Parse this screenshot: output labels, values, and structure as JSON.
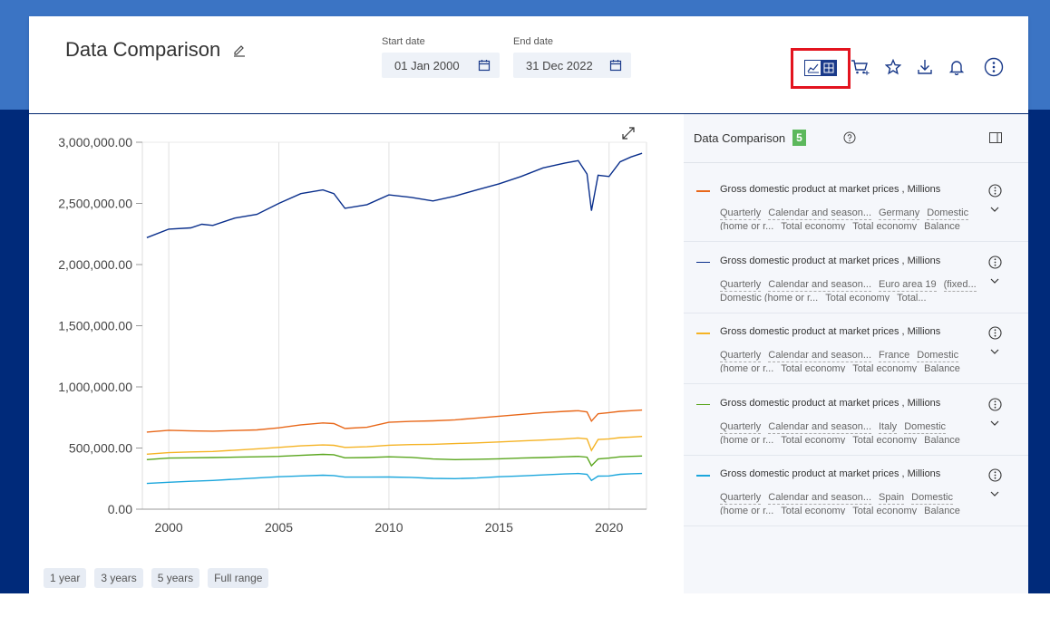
{
  "header": {
    "title": "Data Comparison",
    "start_label": "Start date",
    "start_value": "01 Jan 2000",
    "end_label": "End date",
    "end_value": "31 Dec 2022",
    "toolbar_icons": [
      "chart-table-toggle-icon",
      "cart-add-icon",
      "star-icon",
      "download-icon",
      "bell-icon",
      "more-vertical-icon"
    ]
  },
  "panel": {
    "title": "Data Comparison",
    "count": "5",
    "items": [
      {
        "name": "Gross domestic product at market prices , Millions",
        "color": "#e8681a",
        "tags": [
          "Quarterly",
          "Calendar and season...",
          "Germany",
          "Domestic",
          "(home or r...",
          "Total economy",
          "Total economy",
          "Balance"
        ]
      },
      {
        "name": "Gross domestic product at market prices , Millions",
        "color": "#0a2f8c",
        "tags": [
          "Quarterly",
          "Calendar and season...",
          "Euro area 19",
          "(fixed...",
          "Domestic (home or r...",
          "Total economy",
          "Total..."
        ]
      },
      {
        "name": "Gross domestic product at market prices , Millions",
        "color": "#f5b324",
        "tags": [
          "Quarterly",
          "Calendar and season...",
          "France",
          "Domestic",
          "(home or r...",
          "Total economy",
          "Total economy",
          "Balance"
        ]
      },
      {
        "name": "Gross domestic product at market prices , Millions",
        "color": "#5aa61e",
        "tags": [
          "Quarterly",
          "Calendar and season...",
          "Italy",
          "Domestic",
          "(home or r...",
          "Total economy",
          "Total economy",
          "Balance"
        ]
      },
      {
        "name": "Gross domestic product at market prices , Millions",
        "color": "#1ba6dc",
        "tags": [
          "Quarterly",
          "Calendar and season...",
          "Spain",
          "Domestic",
          "(home or r...",
          "Total economy",
          "Total economy",
          "Balance"
        ]
      }
    ]
  },
  "range_buttons": [
    "1 year",
    "3 years",
    "5 years",
    "Full range"
  ],
  "chart_data": {
    "type": "line",
    "xlim": [
      1998.8,
      2021.7
    ],
    "ylim": [
      0,
      3000000
    ],
    "yticks": [
      "0.00",
      "500,000.00",
      "1,000,000.00",
      "1,500,000.00",
      "2,000,000.00",
      "2,500,000.00",
      "3,000,000.00"
    ],
    "xticks": [
      "2000",
      "2005",
      "2010",
      "2015",
      "2020"
    ],
    "xtick_values": [
      2000,
      2005,
      2010,
      2015,
      2020
    ],
    "grid": "vertical",
    "series": [
      {
        "color": "#0a2f8c",
        "x": [
          1999.0,
          2000.0,
          2001.0,
          2001.5,
          2002.0,
          2003.0,
          2004.0,
          2005.0,
          2006.0,
          2007.0,
          2007.5,
          2008.0,
          2009.0,
          2010.0,
          2011.0,
          2012.0,
          2013.0,
          2014.0,
          2015.0,
          2016.0,
          2017.0,
          2018.0,
          2018.6,
          2019.0,
          2019.2,
          2019.5,
          2020.0,
          2020.5,
          2021.0,
          2021.5
        ],
        "y": [
          2220000,
          2290000,
          2300000,
          2330000,
          2320000,
          2380000,
          2410000,
          2500000,
          2580000,
          2610000,
          2580000,
          2460000,
          2490000,
          2570000,
          2550000,
          2520000,
          2560000,
          2610000,
          2660000,
          2720000,
          2790000,
          2830000,
          2850000,
          2740000,
          2440000,
          2730000,
          2720000,
          2840000,
          2880000,
          2910000
        ]
      },
      {
        "color": "#e8681a",
        "x": [
          1999.0,
          2000.0,
          2001.0,
          2002.0,
          2003.0,
          2004.0,
          2005.0,
          2006.0,
          2007.0,
          2007.5,
          2008.0,
          2009.0,
          2010.0,
          2011.0,
          2012.0,
          2013.0,
          2014.0,
          2015.0,
          2016.0,
          2017.0,
          2018.0,
          2018.6,
          2019.0,
          2019.2,
          2019.5,
          2020.0,
          2020.5,
          2021.0,
          2021.5
        ],
        "y": [
          630000,
          645000,
          640000,
          638000,
          643000,
          648000,
          665000,
          690000,
          705000,
          700000,
          660000,
          670000,
          710000,
          718000,
          722000,
          730000,
          745000,
          760000,
          775000,
          790000,
          800000,
          805000,
          795000,
          720000,
          780000,
          790000,
          800000,
          805000,
          810000
        ]
      },
      {
        "color": "#f5b324",
        "x": [
          1999.0,
          2000.0,
          2001.0,
          2002.0,
          2003.0,
          2004.0,
          2005.0,
          2006.0,
          2007.0,
          2007.5,
          2008.0,
          2009.0,
          2010.0,
          2011.0,
          2012.0,
          2013.0,
          2014.0,
          2015.0,
          2016.0,
          2017.0,
          2018.0,
          2018.6,
          2019.0,
          2019.2,
          2019.5,
          2020.0,
          2020.5,
          2021.0,
          2021.5
        ],
        "y": [
          450000,
          462000,
          468000,
          472000,
          482000,
          493000,
          505000,
          518000,
          525000,
          522000,
          505000,
          510000,
          523000,
          528000,
          530000,
          536000,
          542000,
          550000,
          558000,
          565000,
          575000,
          582000,
          575000,
          480000,
          570000,
          575000,
          585000,
          590000,
          595000
        ]
      },
      {
        "color": "#5aa61e",
        "x": [
          1999.0,
          2000.0,
          2001.0,
          2002.0,
          2003.0,
          2004.0,
          2005.0,
          2006.0,
          2007.0,
          2007.5,
          2008.0,
          2009.0,
          2010.0,
          2011.0,
          2012.0,
          2013.0,
          2014.0,
          2015.0,
          2016.0,
          2017.0,
          2018.0,
          2018.6,
          2019.0,
          2019.2,
          2019.5,
          2020.0,
          2020.5,
          2021.0,
          2021.5
        ],
        "y": [
          405000,
          418000,
          420000,
          422000,
          425000,
          428000,
          432000,
          440000,
          448000,
          445000,
          420000,
          422000,
          428000,
          424000,
          410000,
          405000,
          408000,
          412000,
          418000,
          422000,
          428000,
          432000,
          425000,
          355000,
          410000,
          418000,
          428000,
          432000,
          435000
        ]
      },
      {
        "color": "#1ba6dc",
        "x": [
          1999.0,
          2000.0,
          2001.0,
          2002.0,
          2003.0,
          2004.0,
          2005.0,
          2006.0,
          2007.0,
          2007.5,
          2008.0,
          2009.0,
          2010.0,
          2011.0,
          2012.0,
          2013.0,
          2014.0,
          2015.0,
          2016.0,
          2017.0,
          2018.0,
          2018.6,
          2019.0,
          2019.2,
          2019.5,
          2020.0,
          2020.5,
          2021.0,
          2021.5
        ],
        "y": [
          210000,
          220000,
          228000,
          235000,
          245000,
          255000,
          265000,
          272000,
          278000,
          275000,
          262000,
          262000,
          263000,
          260000,
          252000,
          250000,
          255000,
          265000,
          272000,
          280000,
          288000,
          292000,
          285000,
          235000,
          270000,
          272000,
          285000,
          290000,
          292000
        ]
      }
    ]
  }
}
